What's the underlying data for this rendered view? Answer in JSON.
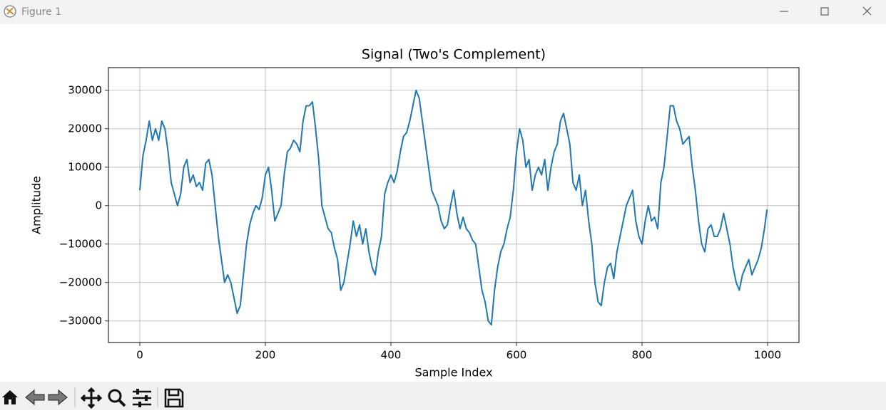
{
  "window": {
    "title": "Figure 1"
  },
  "chart_data": {
    "type": "line",
    "title": "Signal (Two's Complement)",
    "x_label": "Sample Index",
    "y_label": "Amplitude",
    "color": "#1f77b4",
    "grid": true,
    "xlim": [
      -50,
      1050
    ],
    "ylim": [
      -35600,
      35900
    ],
    "xticks": [
      0,
      200,
      400,
      600,
      800,
      1000
    ],
    "yticks": [
      {
        "value": -30000,
        "label": "−30000"
      },
      {
        "value": -20000,
        "label": "−20000"
      },
      {
        "value": -10000,
        "label": "−10000"
      },
      0,
      10000,
      20000,
      30000
    ],
    "x": [
      0,
      5,
      10,
      15,
      20,
      25,
      30,
      35,
      40,
      45,
      50,
      55,
      60,
      65,
      70,
      75,
      80,
      85,
      90,
      95,
      100,
      105,
      110,
      115,
      120,
      125,
      130,
      135,
      140,
      145,
      150,
      155,
      160,
      165,
      170,
      175,
      180,
      185,
      190,
      195,
      200,
      205,
      210,
      215,
      220,
      225,
      230,
      235,
      240,
      245,
      250,
      255,
      260,
      265,
      270,
      275,
      280,
      285,
      290,
      295,
      300,
      305,
      310,
      315,
      320,
      325,
      330,
      335,
      340,
      345,
      350,
      355,
      360,
      365,
      370,
      375,
      380,
      385,
      390,
      395,
      400,
      405,
      410,
      415,
      420,
      425,
      430,
      435,
      440,
      445,
      450,
      455,
      460,
      465,
      470,
      475,
      480,
      485,
      490,
      495,
      500,
      505,
      510,
      515,
      520,
      525,
      530,
      535,
      540,
      545,
      550,
      555,
      560,
      565,
      570,
      575,
      580,
      585,
      590,
      595,
      600,
      605,
      610,
      615,
      620,
      625,
      630,
      635,
      640,
      645,
      650,
      655,
      660,
      665,
      670,
      675,
      680,
      685,
      690,
      695,
      700,
      705,
      710,
      715,
      720,
      725,
      730,
      735,
      740,
      745,
      750,
      755,
      760,
      765,
      770,
      775,
      780,
      785,
      790,
      795,
      800,
      805,
      810,
      815,
      820,
      825,
      830,
      835,
      840,
      845,
      850,
      855,
      860,
      865,
      870,
      875,
      880,
      885,
      890,
      895,
      900,
      905,
      910,
      915,
      920,
      925,
      930,
      935,
      940,
      945,
      950,
      955,
      960,
      965,
      970,
      975,
      980,
      985,
      990,
      995,
      999
    ],
    "values": [
      4000,
      13000,
      17000,
      22000,
      17000,
      20000,
      17000,
      22000,
      20000,
      14000,
      6000,
      3000,
      0,
      3000,
      10000,
      12000,
      6000,
      8000,
      5000,
      6000,
      4000,
      11000,
      12000,
      8000,
      0,
      -8000,
      -14000,
      -20000,
      -18000,
      -20000,
      -24000,
      -28000,
      -26000,
      -18000,
      -10000,
      -5000,
      -2000,
      0,
      -1000,
      2000,
      8000,
      10000,
      4000,
      -4000,
      -2000,
      0,
      8000,
      14000,
      15000,
      17000,
      16000,
      14000,
      22000,
      26000,
      26000,
      27000,
      20000,
      12000,
      0,
      -3000,
      -6000,
      -7000,
      -11000,
      -14000,
      -22000,
      -20000,
      -15000,
      -10000,
      -4000,
      -8000,
      -5000,
      -10000,
      -6000,
      -12000,
      -16000,
      -18000,
      -12000,
      -8000,
      3000,
      6000,
      8000,
      6000,
      9000,
      14000,
      18000,
      19000,
      22000,
      26000,
      30000,
      28000,
      22000,
      16000,
      10000,
      4000,
      2000,
      0,
      -4000,
      -6000,
      -5000,
      0,
      4000,
      -2000,
      -6000,
      -3000,
      -6000,
      -7000,
      -9000,
      -10000,
      -16000,
      -22000,
      -25000,
      -30000,
      -31000,
      -22000,
      -16000,
      -12000,
      -10000,
      -6000,
      -3000,
      4000,
      14000,
      20000,
      17000,
      10000,
      12000,
      4000,
      8000,
      10000,
      8000,
      12000,
      4000,
      10000,
      14000,
      16000,
      22000,
      24000,
      20000,
      16000,
      6000,
      4000,
      8000,
      0,
      4000,
      -4000,
      -10000,
      -20000,
      -25000,
      -26000,
      -20000,
      -16000,
      -15000,
      -19000,
      -12000,
      -8000,
      -4000,
      0,
      2000,
      4000,
      -4000,
      -8000,
      -10000,
      -4000,
      0,
      -4000,
      -3000,
      -6000,
      6000,
      10000,
      18000,
      26000,
      26000,
      22000,
      20000,
      16000,
      17000,
      18000,
      10000,
      4000,
      -4000,
      -10000,
      -12000,
      -6000,
      -5000,
      -8000,
      -8000,
      -6000,
      -2000,
      -6000,
      -10000,
      -16000,
      -20000,
      -22000,
      -18000,
      -16000,
      -14000,
      -18000,
      -16000,
      -14000,
      -11000,
      -6000,
      -1000
    ]
  }
}
